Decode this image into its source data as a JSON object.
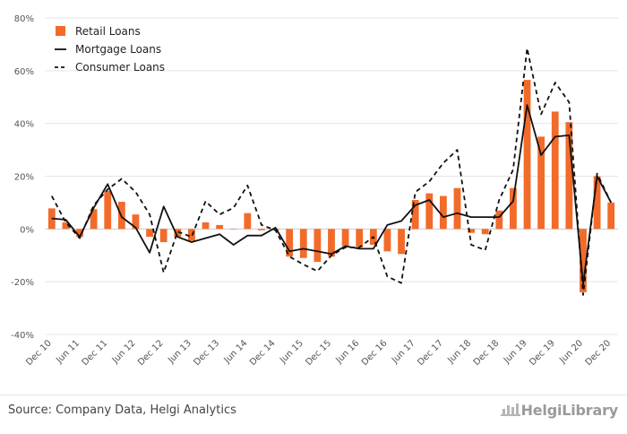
{
  "chart_data": {
    "type": "bar",
    "title": "",
    "xlabel": "",
    "ylabel": "",
    "ylim": [
      -40,
      80
    ],
    "y_ticks": [
      "-40%",
      "-20%",
      "0%",
      "20%",
      "40%",
      "60%",
      "80%"
    ],
    "y_tick_values": [
      -40,
      -20,
      0,
      20,
      40,
      60,
      80
    ],
    "grid": "horizontal",
    "legend_position": "top-left",
    "categories": [
      "Dec 10",
      "Mar 11",
      "Jun 11",
      "Sep 11",
      "Dec 11",
      "Mar 12",
      "Jun 12",
      "Sep 12",
      "Dec 12",
      "Mar 13",
      "Jun 13",
      "Sep 13",
      "Dec 13",
      "Mar 14",
      "Jun 14",
      "Sep 14",
      "Dec 14",
      "Mar 15",
      "Jun 15",
      "Sep 15",
      "Dec 15",
      "Mar 16",
      "Jun 16",
      "Sep 16",
      "Dec 16",
      "Mar 17",
      "Jun 17",
      "Sep 17",
      "Dec 17",
      "Mar 18",
      "Jun 18",
      "Sep 18",
      "Dec 18",
      "Mar 19",
      "Jun 19",
      "Sep 19",
      "Dec 19",
      "Mar 20",
      "Jun 20",
      "Sep 20",
      "Dec 20"
    ],
    "x_tick_labels": [
      "Dec 10",
      "Jun 11",
      "Dec 11",
      "Jun 12",
      "Dec 12",
      "Jun 13",
      "Dec 13",
      "Jun 14",
      "Dec 14",
      "Jun 15",
      "Dec 15",
      "Jun 16",
      "Dec 16",
      "Jun 17",
      "Dec 17",
      "Jun 18",
      "Dec 18",
      "Jun 19",
      "Dec 19",
      "Jun 20",
      "Dec 20"
    ],
    "series": [
      {
        "name": "Retail Loans",
        "type": "bar",
        "color": "#f26b2a",
        "values": [
          7.8,
          2.5,
          -3.0,
          7.5,
          14.5,
          10.3,
          5.5,
          -3.0,
          -5.0,
          -3.0,
          -4.5,
          2.5,
          1.5,
          0,
          6.0,
          -0.5,
          -0.5,
          -10.5,
          -11.0,
          -12.5,
          -10.5,
          -6.5,
          -7.0,
          -6.0,
          -8.5,
          -9.5,
          11.0,
          13.5,
          12.5,
          15.5,
          -1.5,
          -2.0,
          7.0,
          15.5,
          56.5,
          35.0,
          44.5,
          40.5,
          -24.0,
          20.0,
          10.0
        ]
      },
      {
        "name": "Mortgage Loans",
        "type": "line",
        "color": "#111111",
        "values": [
          4.0,
          3.5,
          -3.0,
          8.0,
          17.0,
          4.5,
          0.5,
          -9.0,
          8.5,
          -3.0,
          -5.0,
          -3.5,
          -2.0,
          -6.0,
          -2.5,
          -2.5,
          0.5,
          -8.5,
          -7.5,
          -8.5,
          -9.5,
          -6.5,
          -7.5,
          -7.5,
          1.5,
          3.0,
          9.0,
          11.0,
          4.5,
          6.0,
          4.5,
          4.5,
          4.5,
          10.5,
          47.0,
          28.0,
          35.0,
          35.5,
          -21.0,
          20.0,
          10.0
        ]
      },
      {
        "name": "Consumer Loans",
        "type": "line",
        "dashed": true,
        "color": "#111111",
        "values": [
          12.5,
          2.5,
          -3.5,
          9.0,
          15.0,
          19.0,
          14.0,
          5.5,
          -16.5,
          -1.0,
          -3.0,
          10.5,
          5.5,
          8.0,
          16.5,
          1.5,
          -0.5,
          -10.5,
          -13.5,
          -16.0,
          -10.0,
          -7.0,
          -7.0,
          -3.0,
          -18.0,
          -20.5,
          14.0,
          18.0,
          25.0,
          30.0,
          -6.0,
          -8.0,
          11.0,
          22.5,
          68.5,
          43.5,
          55.5,
          48.0,
          -25.0,
          21.0,
          10.0
        ]
      }
    ]
  },
  "footer": {
    "source": "Source: Company Data, Helgi Analytics",
    "logo_text": "HelgiLibrary",
    "logo_icon": "bar-chart-icon"
  }
}
